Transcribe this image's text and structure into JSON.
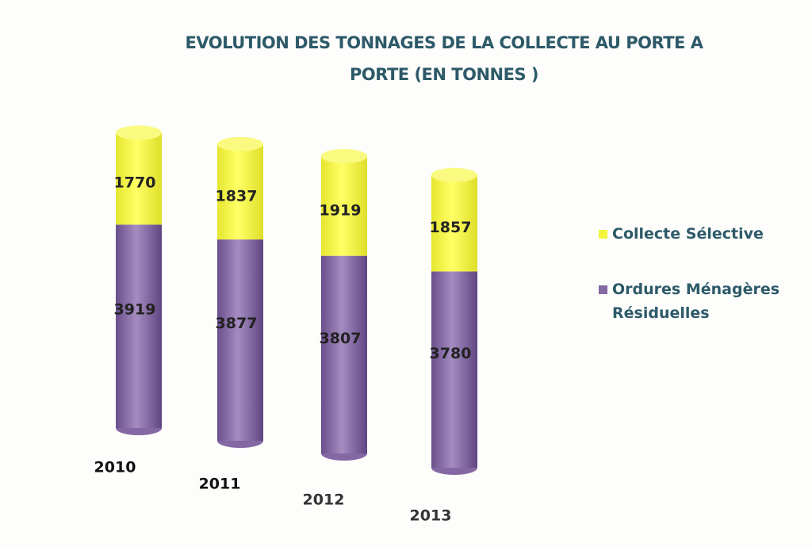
{
  "chart_data": {
    "type": "stacked-cylinder",
    "title": "EVOLUTION DES TONNAGES DE LA COLLECTE AU PORTE A PORTE (EN TONNES )",
    "categories": [
      "2010",
      "2011",
      "2012",
      "2013"
    ],
    "series": [
      {
        "name": "Ordures Ménagères Résiduelles",
        "color": "#8468a4",
        "values": [
          3919,
          3877,
          3807,
          3780
        ]
      },
      {
        "name": "Collecte Sélective",
        "color": "#f4f43c",
        "values": [
          1770,
          1837,
          1919,
          1857
        ]
      }
    ]
  }
}
